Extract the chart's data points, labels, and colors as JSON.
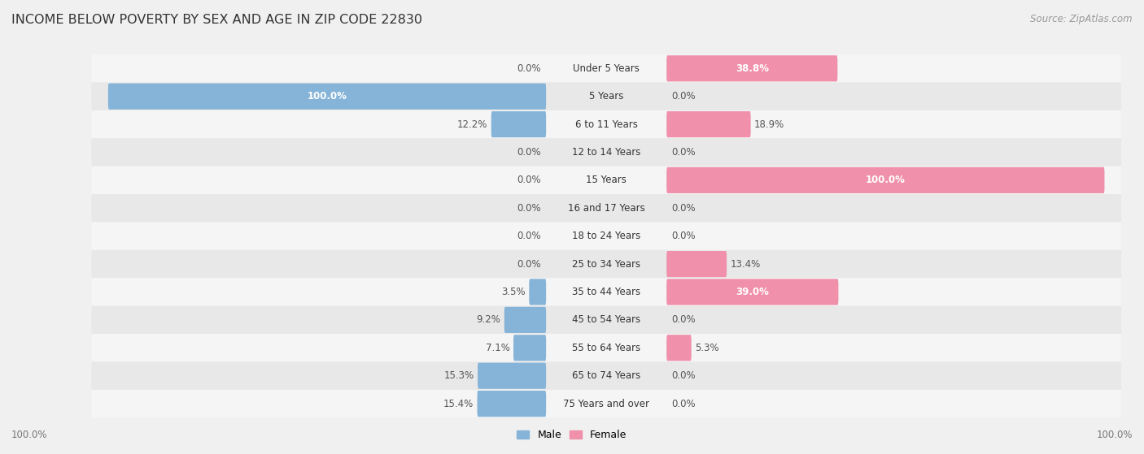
{
  "title": "INCOME BELOW POVERTY BY SEX AND AGE IN ZIP CODE 22830",
  "source": "Source: ZipAtlas.com",
  "categories": [
    "Under 5 Years",
    "5 Years",
    "6 to 11 Years",
    "12 to 14 Years",
    "15 Years",
    "16 and 17 Years",
    "18 to 24 Years",
    "25 to 34 Years",
    "35 to 44 Years",
    "45 to 54 Years",
    "55 to 64 Years",
    "65 to 74 Years",
    "75 Years and over"
  ],
  "male": [
    0.0,
    100.0,
    12.2,
    0.0,
    0.0,
    0.0,
    0.0,
    0.0,
    3.5,
    9.2,
    7.1,
    15.3,
    15.4
  ],
  "female": [
    38.8,
    0.0,
    18.9,
    0.0,
    100.0,
    0.0,
    0.0,
    13.4,
    39.0,
    0.0,
    5.3,
    0.0,
    0.0
  ],
  "male_color": "#85b4d8",
  "female_color": "#f090aa",
  "male_label": "Male",
  "female_label": "Female",
  "bg_color": "#f0f0f0",
  "title_fontsize": 11.5,
  "source_fontsize": 8.5,
  "label_fontsize": 8.5,
  "cat_fontsize": 8.5,
  "max_val": 100.0,
  "bar_height": 0.55,
  "row_bg_odd": "#f5f5f5",
  "row_bg_even": "#e8e8e8",
  "center_label_color": "#555555",
  "value_label_color_inside": "#ffffff",
  "value_label_color_outside": "#555555"
}
